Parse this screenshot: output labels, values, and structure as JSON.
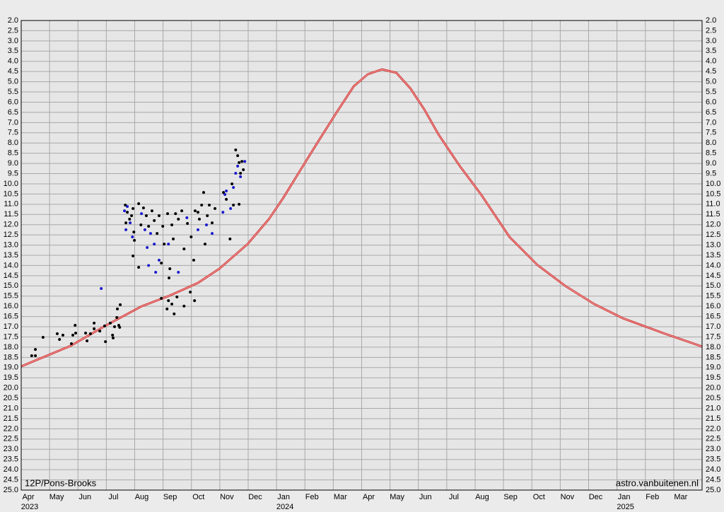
{
  "chart_data": {
    "type": "scatter",
    "xlim": [
      0,
      24
    ],
    "ylim": [
      25,
      2
    ],
    "grid": true,
    "xticks": [
      {
        "value": 0,
        "label": "Apr"
      },
      {
        "value": 1,
        "label": "May"
      },
      {
        "value": 2,
        "label": "Jun"
      },
      {
        "value": 3,
        "label": "Jul"
      },
      {
        "value": 4,
        "label": "Aug"
      },
      {
        "value": 5,
        "label": "Sep"
      },
      {
        "value": 6,
        "label": "Oct"
      },
      {
        "value": 7,
        "label": "Nov"
      },
      {
        "value": 8,
        "label": "Dec"
      },
      {
        "value": 9,
        "label": "Jan"
      },
      {
        "value": 10,
        "label": "Feb"
      },
      {
        "value": 11,
        "label": "Mar"
      },
      {
        "value": 12,
        "label": "Apr"
      },
      {
        "value": 13,
        "label": "May"
      },
      {
        "value": 14,
        "label": "Jun"
      },
      {
        "value": 15,
        "label": "Jul"
      },
      {
        "value": 16,
        "label": "Aug"
      },
      {
        "value": 17,
        "label": "Sep"
      },
      {
        "value": 18,
        "label": "Oct"
      },
      {
        "value": 19,
        "label": "Nov"
      },
      {
        "value": 20,
        "label": "Dec"
      },
      {
        "value": 21,
        "label": "Jan"
      },
      {
        "value": 22,
        "label": "Feb"
      },
      {
        "value": 23,
        "label": "Mar"
      }
    ],
    "year_labels": [
      {
        "value": 0,
        "label": "2023"
      },
      {
        "value": 9,
        "label": "2024"
      },
      {
        "value": 21,
        "label": "2025"
      }
    ],
    "yticks": [
      {
        "value": 2,
        "label": "2.0"
      },
      2.5,
      {
        "value": 3,
        "label": "3.0"
      },
      3.5,
      {
        "value": 4,
        "label": "4.0"
      },
      4.5,
      {
        "value": 5,
        "label": "5.0"
      },
      5.5,
      {
        "value": 6,
        "label": "6.0"
      },
      6.5,
      {
        "value": 7,
        "label": "7.0"
      },
      7.5,
      {
        "value": 8,
        "label": "8.0"
      },
      8.5,
      {
        "value": 9,
        "label": "9.0"
      },
      9.5,
      {
        "value": 10,
        "label": "10.0"
      },
      10.5,
      {
        "value": 11,
        "label": "11.0"
      },
      11.5,
      {
        "value": 12,
        "label": "12.0"
      },
      12.5,
      {
        "value": 13,
        "label": "13.0"
      },
      13.5,
      {
        "value": 14,
        "label": "14.0"
      },
      14.5,
      {
        "value": 15,
        "label": "15.0"
      },
      15.5,
      {
        "value": 16,
        "label": "16.0"
      },
      16.5,
      {
        "value": 17,
        "label": "17.0"
      },
      17.5,
      {
        "value": 18,
        "label": "18.0"
      },
      18.5,
      {
        "value": 19,
        "label": "19.0"
      },
      19.5,
      {
        "value": 20,
        "label": "20.0"
      },
      20.5,
      {
        "value": 21,
        "label": "21.0"
      },
      21.5,
      {
        "value": 22,
        "label": "22.0"
      },
      22.5,
      {
        "value": 23,
        "label": "23.0"
      },
      23.5,
      {
        "value": 24,
        "label": "24.0"
      },
      24.5,
      {
        "value": 25,
        "label": "25.0"
      }
    ],
    "annotations": [
      "12P/Pons-Brooks",
      "astro.vanbuitenen.nl"
    ],
    "series": [
      {
        "type": "line",
        "color": "#d63a3a",
        "x": [
          0,
          1.75,
          2.99,
          4.24,
          5.24,
          6.23,
          6.98,
          7.98,
          8.73,
          9.23,
          9.85,
          10.47,
          11.1,
          11.72,
          12.22,
          12.72,
          13.22,
          13.72,
          14.21,
          14.71,
          15.46,
          16.21,
          17.21,
          18.2,
          19.2,
          20.2,
          21.2,
          22.69,
          24
        ],
        "values": [
          18.94,
          17.93,
          16.93,
          16.0,
          15.47,
          14.85,
          14.16,
          12.95,
          11.73,
          10.7,
          9.31,
          7.92,
          6.54,
          5.22,
          4.63,
          4.39,
          4.56,
          5.33,
          6.36,
          7.58,
          9.13,
          10.52,
          12.6,
          13.98,
          15.02,
          15.89,
          16.58,
          17.34,
          17.97
        ]
      },
      {
        "type": "scatter",
        "color": "#000000",
        "x": [
          0.37,
          0.5,
          0.5,
          0.77,
          1.27,
          1.35,
          1.47,
          1.77,
          1.82,
          1.9,
          1.92,
          2.27,
          2.32,
          2.44,
          2.57,
          2.57,
          2.77,
          2.94,
          2.97,
          3.14,
          3.22,
          3.24,
          3.29,
          3.37,
          3.39,
          3.44,
          3.49,
          3.47,
          3.67,
          3.74,
          3.82,
          3.89,
          3.69,
          3.94,
          3.97,
          3.99,
          3.94,
          4.14,
          4.14,
          4.22,
          4.31,
          4.41,
          4.49,
          4.61,
          4.69,
          4.79,
          4.86,
          4.99,
          5.04,
          5.16,
          5.24,
          5.31,
          5.36,
          5.44,
          5.54,
          5.66,
          5.74,
          5.86,
          5.99,
          6.08,
          6.13,
          6.23,
          6.28,
          6.36,
          6.43,
          6.48,
          6.56,
          6.63,
          6.73,
          6.83,
          7.13,
          7.23,
          7.36,
          7.43,
          7.48,
          7.56,
          7.63,
          7.68,
          7.73,
          7.78,
          7.83,
          7.68,
          4.94,
          5.14,
          5.19,
          5.31,
          5.39,
          5.49,
          5.74,
          5.96,
          6.11,
          5.21,
          4.94
        ],
        "values": [
          18.42,
          18.42,
          18.11,
          17.52,
          17.34,
          17.62,
          17.41,
          17.83,
          17.41,
          16.93,
          17.31,
          17.31,
          17.69,
          17.34,
          16.82,
          17.1,
          17.21,
          16.96,
          17.73,
          16.82,
          17.41,
          17.55,
          17.0,
          16.55,
          16.13,
          16.93,
          15.92,
          17.03,
          11.04,
          11.39,
          11.73,
          11.56,
          11.91,
          11.21,
          12.36,
          12.77,
          13.53,
          10.97,
          14.09,
          12.01,
          11.18,
          11.56,
          12.08,
          11.32,
          11.8,
          12.43,
          11.56,
          12.08,
          12.95,
          11.46,
          14.16,
          12.01,
          12.7,
          11.46,
          11.73,
          11.32,
          13.19,
          11.94,
          12.6,
          13.74,
          11.32,
          11.39,
          11.73,
          11.04,
          10.42,
          12.95,
          11.56,
          11.04,
          11.91,
          11.21,
          10.42,
          10.76,
          12.7,
          10.0,
          11.04,
          8.34,
          8.62,
          8.96,
          9.48,
          8.9,
          9.31,
          11.0,
          15.61,
          16.13,
          15.72,
          15.89,
          16.37,
          15.54,
          15.99,
          15.3,
          15.72,
          14.61,
          13.88
        ]
      },
      {
        "type": "scatter",
        "color": "#1a1acc",
        "x": [
          2.82,
          3.64,
          3.74,
          3.84,
          3.92,
          3.69,
          4.24,
          4.36,
          4.44,
          4.49,
          4.56,
          4.69,
          4.74,
          4.86,
          5.19,
          5.54,
          5.84,
          6.23,
          6.53,
          6.73,
          7.11,
          7.23,
          7.38,
          7.48,
          7.56,
          7.63,
          7.73,
          7.88,
          7.18
        ],
        "values": [
          15.13,
          11.32,
          11.11,
          11.91,
          12.6,
          12.25,
          11.46,
          12.25,
          13.12,
          14.0,
          12.43,
          12.95,
          14.33,
          13.74,
          12.95,
          14.33,
          11.66,
          12.25,
          12.01,
          12.43,
          11.39,
          10.35,
          11.21,
          10.18,
          9.48,
          9.13,
          9.65,
          8.9,
          10.52
        ]
      }
    ]
  }
}
